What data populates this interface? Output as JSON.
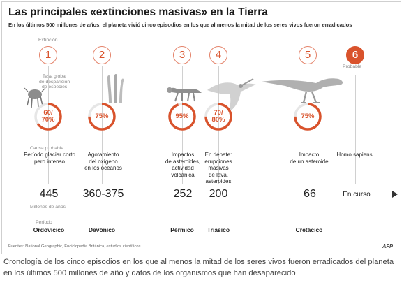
{
  "title": "Las principales «extinciones masivas» en la Tierra",
  "subtitle": "En los últimos 500 millones de años, el planeta vivió cinco episodios en los que al menos la mitad de los seres vivos fueron erradicados",
  "labels": {
    "extincion": "Extinción",
    "tasa_line1": "Tasa global",
    "tasa_line2": "de desparición",
    "tasa_line3": "de especies",
    "causa": "Causa probable",
    "probable": "Probable",
    "millones": "Millones de años",
    "periodo": "Período"
  },
  "chart_data": {
    "type": "timeline",
    "title": "Las principales «extinciones masivas» en la Tierra",
    "events": [
      {
        "number": "1",
        "rate": "60/\n70%",
        "rate_value": [
          60,
          70
        ],
        "cause": "Período glaciar corto\npero intenso",
        "time": "445",
        "period": "Ordovícico"
      },
      {
        "number": "2",
        "rate": "75%",
        "rate_value": 75,
        "cause": "Agotamiento\ndel oxígeno\nen los océanos",
        "time": "360-375",
        "period": "Devónico"
      },
      {
        "number": "3",
        "rate": "95%",
        "rate_value": 95,
        "cause": "Impactos\nde asteroides,\nactividad\nvolcánica",
        "time": "252",
        "period": "Pérmico"
      },
      {
        "number": "4",
        "rate": "70/\n80%",
        "rate_value": [
          70,
          80
        ],
        "cause": "En debate:\nerupciones\nmasivas\nde lava,\nasteroides",
        "time": "200",
        "period": "Triásico"
      },
      {
        "number": "5",
        "rate": "75%",
        "rate_value": 75,
        "cause": "Impacto\nde un asteroide",
        "time": "66",
        "period": "Cretácico"
      },
      {
        "number": "6",
        "rate": "",
        "rate_value": null,
        "cause": "Homo sapiens",
        "time": "En curso",
        "period": ""
      }
    ]
  },
  "sources": "Fuentes: National Geographic, Enciclopedia Británica, estudios científicos",
  "agency": "AFP",
  "caption": "Cronología de los cinco episodios en los que al menos la mitad de los seres vivos fueron erradicados del planeta en los últimos 500 millones de año y datos de los organismos que han desaparecido",
  "colors": {
    "accent": "#d9532c",
    "ring_track": "#e6e6e6",
    "text": "#222222"
  },
  "icons": [
    "trilobite-icon",
    "crinoid-icon",
    "reptile-skeleton-icon",
    "pterosaur-icon",
    "dinosaur-skeleton-icon"
  ]
}
